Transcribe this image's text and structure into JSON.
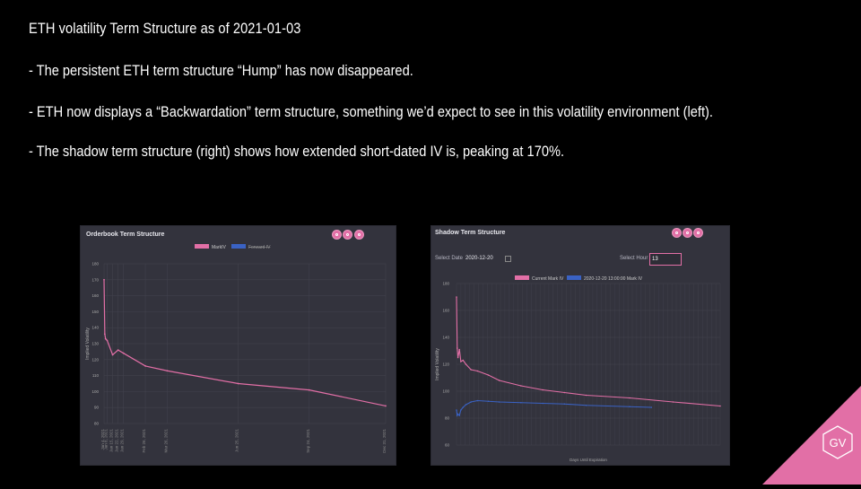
{
  "slide": {
    "title": "ETH volatility Term Structure as of 2021-01-03",
    "bullets": [
      "- The persistent ETH term structure “Hump” has now disappeared.",
      "- ETH now displays a “Backwardation” term structure, something we’d expect to see in this volatility environment (left).",
      "- The shadow term structure (right) shows how extended short-dated IV is, peaking at 170%."
    ]
  },
  "colors": {
    "background": "#000000",
    "panel": "#33333d",
    "pink": "#e26fa6",
    "blue": "#3a62c4",
    "grid": "#44444f"
  },
  "left_chart": {
    "title": "Orderbook Term Structure",
    "icons": [
      "camera-icon",
      "reset-icon",
      "download-icon"
    ],
    "chart_data": {
      "type": "line",
      "legend_placement": "top",
      "series": [
        {
          "name": "MarkIV",
          "color": "#e26fa6",
          "x": [
            "2021-01-04",
            "2021-01-05",
            "2021-01-06",
            "2021-01-08",
            "2021-01-15",
            "2021-01-22",
            "2021-01-29",
            "2021-02-26",
            "2021-03-26",
            "2021-06-25",
            "2021-09-24",
            "2021-12-31"
          ],
          "values": [
            170,
            136,
            133,
            132,
            123,
            126,
            124,
            116,
            113,
            105,
            101,
            91
          ]
        },
        {
          "name": "Forward IV",
          "color": "#3a62c4",
          "hidden": true,
          "values": []
        }
      ],
      "ylabel": "Implied Volatility",
      "ylim": [
        80,
        180
      ],
      "yticks": [
        80,
        90,
        100,
        110,
        120,
        130,
        140,
        150,
        160,
        170,
        180
      ],
      "xtick_labels": [
        "Jan 4, 2021",
        "Jan 8, 2021",
        "Jan 15, 2021",
        "Jan 22, 2021",
        "Jan 29, 2021",
        "Feb 26, 2021",
        "Mar 26, 2021",
        "Jun 25, 2021",
        "Sep 24, 2021",
        "Dec 31, 2021"
      ],
      "grid": true
    }
  },
  "right_chart": {
    "title": "Shadow Term Structure",
    "icons": [
      "camera-icon",
      "reset-icon",
      "download-icon"
    ],
    "select_date_label": "Select Date",
    "select_date_value": "2020-12-20",
    "select_hour_label": "Select Hour",
    "select_hour_value": "13",
    "chart_data": {
      "type": "line",
      "legend_placement": "top",
      "series": [
        {
          "name": "Current Mark IV",
          "color": "#e26fa6",
          "x": [
            1,
            2,
            3,
            5,
            7,
            10,
            14,
            21,
            30,
            45,
            60,
            90,
            120,
            150,
            180,
            240,
            300,
            365
          ],
          "values": [
            170,
            132,
            125,
            131,
            122,
            123,
            120,
            116,
            115,
            112,
            108,
            104,
            101,
            99,
            97,
            95,
            92,
            89
          ]
        },
        {
          "name": "2020-12-20 13:00:00 Mark IV",
          "color": "#3a62c4",
          "x": [
            1,
            2,
            3,
            5,
            7,
            10,
            14,
            21,
            30,
            45,
            60,
            90,
            120,
            150,
            180,
            240,
            270
          ],
          "values": [
            86,
            82,
            83,
            82,
            86,
            88,
            90,
            92,
            93,
            92.5,
            92,
            91.5,
            91,
            90.5,
            89.5,
            88.5,
            88
          ]
        }
      ],
      "xlabel": "Days Until Expiration",
      "ylabel": "Implied Volatility",
      "ylim": [
        60,
        180
      ],
      "yticks": [
        60,
        80,
        100,
        120,
        140,
        160,
        180
      ],
      "grid": true
    }
  },
  "logo": {
    "text": "GV"
  }
}
